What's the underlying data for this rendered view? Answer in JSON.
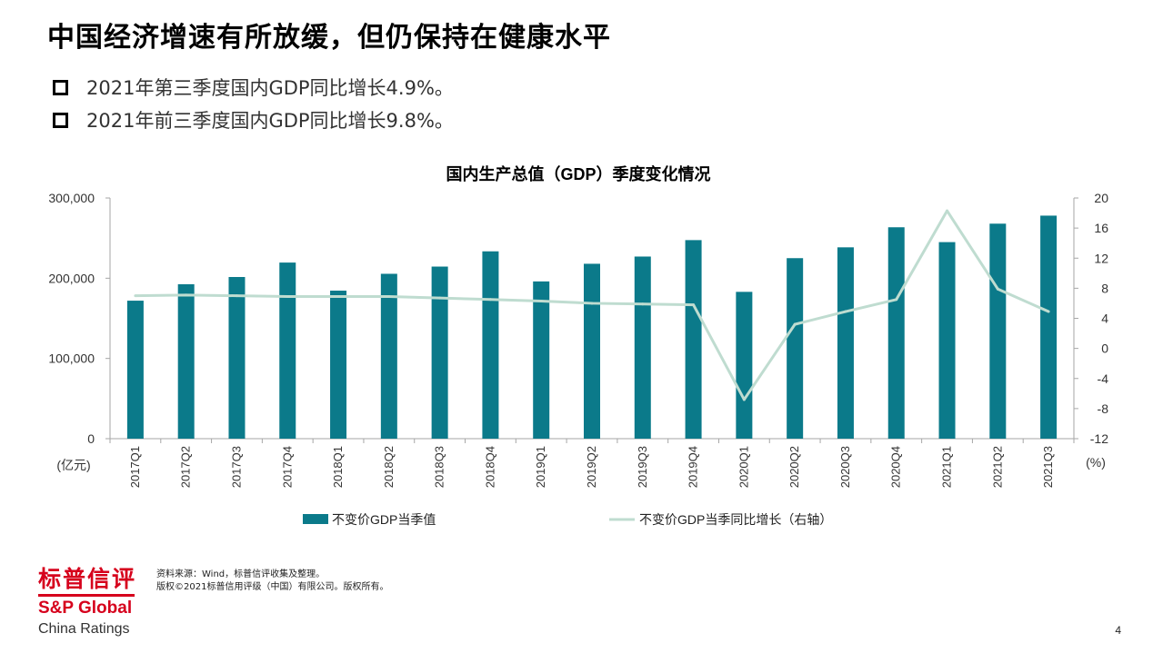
{
  "slide": {
    "title": "中国经济增速有所放缓，但仍保持在健康水平",
    "bullets": [
      "2021年第三季度国内GDP同比增长4.9%。",
      "2021年前三季度国内GDP同比增长9.8%。"
    ],
    "source_line1": "资料来源：Wind，标普信评收集及整理。",
    "source_line2": "版权©2021标普信用评级（中国）有限公司。版权所有。",
    "page_number": "4"
  },
  "logo": {
    "cn": "标普信评",
    "en1": "S&P Global",
    "en2": "China Ratings"
  },
  "colors": {
    "bar": "#0b7a8a",
    "line": "#bfdcd0",
    "brand": "#d6001c",
    "axis": "#a6a6a6"
  },
  "chart_data": {
    "type": "bar+line",
    "title": "国内生产总值（GDP）季度变化情况",
    "categories": [
      "2017Q1",
      "2017Q2",
      "2017Q3",
      "2017Q4",
      "2018Q1",
      "2018Q2",
      "2018Q3",
      "2018Q4",
      "2019Q1",
      "2019Q2",
      "2019Q3",
      "2019Q4",
      "2020Q1",
      "2020Q2",
      "2020Q3",
      "2020Q4",
      "2021Q1",
      "2021Q2",
      "2021Q3"
    ],
    "y_left": {
      "unit": "(亿元)",
      "ylim": [
        0,
        300000
      ],
      "ticks": [
        0,
        100000,
        200000,
        300000
      ],
      "tick_labels": [
        "0",
        "100,000",
        "200,000",
        "300,000"
      ]
    },
    "y_right": {
      "unit": "(%)",
      "ylim": [
        -12,
        20
      ],
      "ticks": [
        -12,
        -8,
        -4,
        0,
        4,
        8,
        12,
        16,
        20
      ],
      "tick_labels": [
        "-12",
        "-8",
        "-4",
        "0",
        "4",
        "8",
        "12",
        "16",
        "20"
      ]
    },
    "series": [
      {
        "name": "不变价GDP当季值",
        "type": "bar",
        "axis": "left",
        "values": [
          172000,
          192500,
          201500,
          219500,
          184500,
          205500,
          214500,
          233500,
          196000,
          218000,
          227000,
          247500,
          183000,
          225000,
          238500,
          263500,
          245000,
          268000,
          278000
        ]
      },
      {
        "name": "不变价GDP当季同比增长（右轴）",
        "type": "line",
        "axis": "right",
        "values": [
          7.0,
          7.1,
          7.0,
          6.9,
          6.9,
          6.9,
          6.7,
          6.5,
          6.3,
          6.0,
          5.9,
          5.8,
          -6.8,
          3.2,
          4.9,
          6.5,
          18.3,
          7.9,
          4.9
        ]
      }
    ],
    "legend_position": "bottom",
    "grid": false
  }
}
